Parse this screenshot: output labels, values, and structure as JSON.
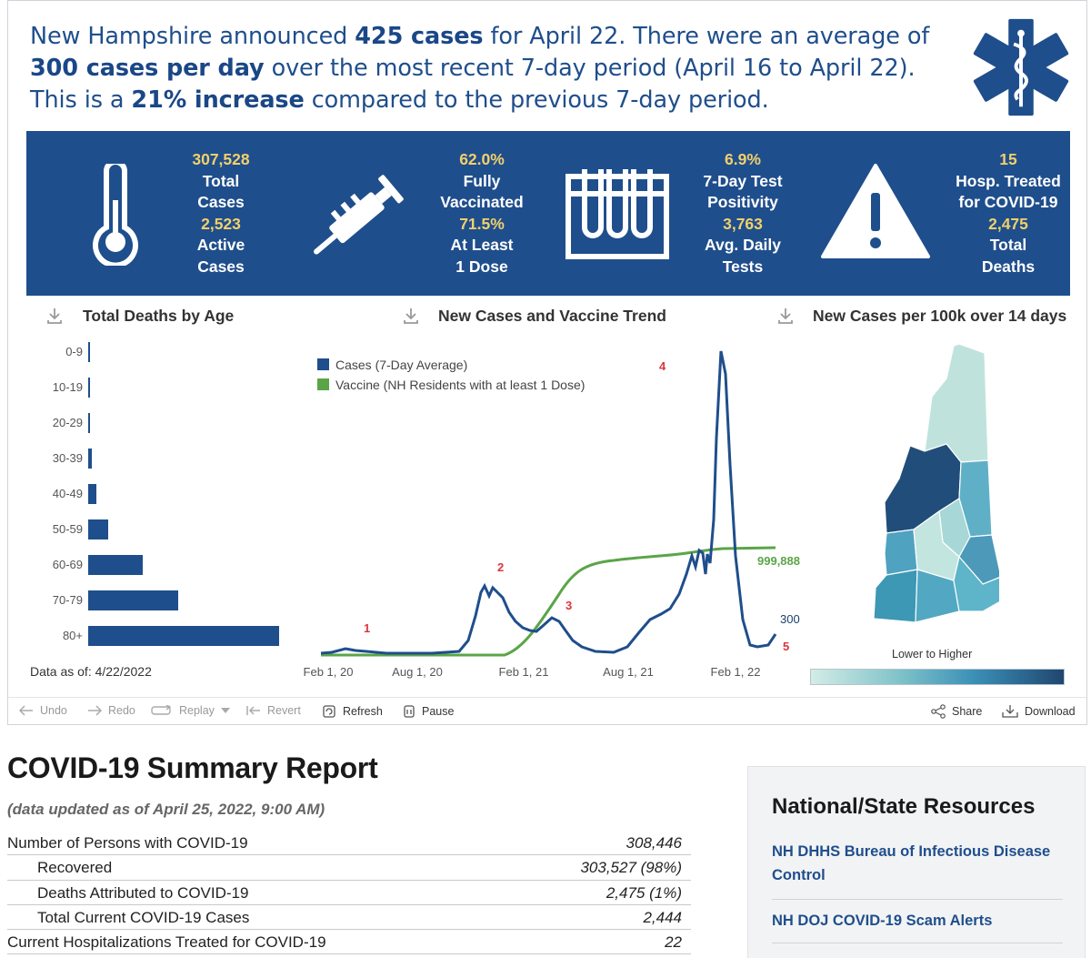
{
  "headline": {
    "p1": "New Hampshire announced ",
    "b1": "425 cases",
    "p2": " for April 22. There were an average of ",
    "b2": "300 cases per day",
    "p3": " over the most recent 7-day period (April 16 to April 22). This is a ",
    "b3": "21% increase",
    "p4": " compared to the previous 7-day period."
  },
  "logo_icon": "star-of-life-icon",
  "banner": {
    "color": "#1f4e8c",
    "highlight_color": "#f2d06b",
    "stats": [
      {
        "icon": "thermometer-icon",
        "v1": "307,528",
        "l1a": "Total",
        "l1b": "Cases",
        "v2": "2,523",
        "l2a": "Active",
        "l2b": "Cases"
      },
      {
        "icon": "syringe-icon",
        "v1": "62.0%",
        "l1a": "Fully",
        "l1b": "Vaccinated",
        "v2": "71.5%",
        "l2a": "At Least",
        "l2b": "1 Dose"
      },
      {
        "icon": "test-tubes-icon",
        "v1": "6.9%",
        "l1a": "7-Day Test",
        "l1b": "Positivity",
        "v2": "3,763",
        "l2a": "Avg. Daily",
        "l2b": "Tests"
      },
      {
        "icon": "warning-icon",
        "v1": "15",
        "l1a": "Hosp. Treated",
        "l1b": "for COVID-19",
        "v2": "2,475",
        "l2a": "Total",
        "l2b": "Deaths"
      }
    ]
  },
  "sections": {
    "deaths_by_age": "Total Deaths by Age",
    "trend": "New Cases and Vaccine Trend",
    "map": "New Cases per 100k over 14 days"
  },
  "data_as_of": "Data as of: 4/22/2022",
  "map_legend": "Lower to Higher",
  "chart_data": [
    {
      "type": "bar",
      "orientation": "horizontal",
      "title": "Total Deaths by Age",
      "categories": [
        "0-9",
        "10-19",
        "20-29",
        "30-39",
        "40-49",
        "50-59",
        "60-69",
        "70-79",
        "80+"
      ],
      "values": [
        1,
        3,
        5,
        18,
        42,
        105,
        290,
        480,
        1020
      ],
      "color": "#1f4e8c"
    },
    {
      "type": "line",
      "title": "New Cases and Vaccine Trend",
      "x_ticks": [
        "Feb 1, 20",
        "Aug 1, 20",
        "Feb 1, 21",
        "Aug 1, 21",
        "Feb 1, 22"
      ],
      "series": [
        {
          "name": "Cases (7-Day Average)",
          "color": "#1f4e8c",
          "end_label": "300"
        },
        {
          "name": "Vaccine (NH Residents with at least 1 Dose)",
          "color": "#5aa548",
          "end_label": "999,888"
        }
      ],
      "annotations": [
        "1",
        "2",
        "3",
        "4",
        "5"
      ],
      "annotation_color": "#d9363e"
    }
  ],
  "toolbar": {
    "undo": "Undo",
    "redo": "Redo",
    "replay": "Replay",
    "revert": "Revert",
    "refresh": "Refresh",
    "pause": "Pause",
    "share": "Share",
    "download": "Download"
  },
  "report": {
    "title": "COVID-19 Summary Report",
    "subtitle": "(data updated as of April 25, 2022, 9:00 AM)",
    "rows": [
      {
        "label": "Number of Persons with COVID-19",
        "value": "308,446"
      },
      {
        "label": "Recovered",
        "value": "303,527 (98%)"
      },
      {
        "label": "Deaths Attributed to COVID-19",
        "value": "2,475 (1%)"
      },
      {
        "label": "Total Current COVID-19 Cases",
        "value": "2,444"
      },
      {
        "label": "Current Hospitalizations Treated for COVID-19",
        "value": "22"
      }
    ]
  },
  "resources": {
    "title": "National/State Resources",
    "links": [
      "NH DHHS Bureau of Infectious Disease Control",
      "NH DOJ COVID-19 Scam Alerts"
    ]
  }
}
